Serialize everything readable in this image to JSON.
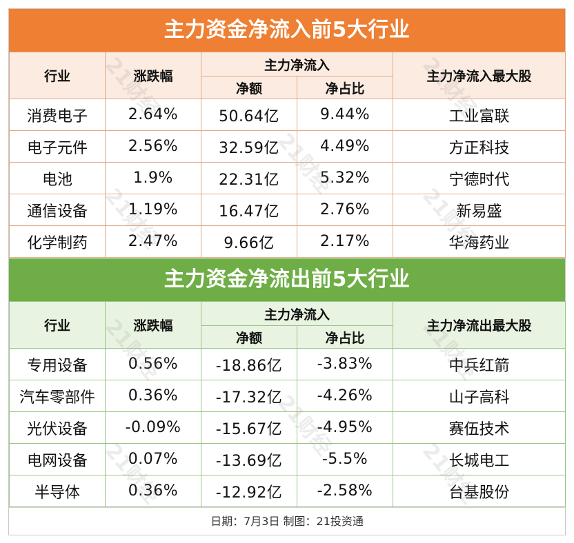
{
  "inflow": {
    "title": "主力资金净流入前5大行业",
    "headers": {
      "industry": "行业",
      "change": "涨跌幅",
      "net_inflow_group": "主力净流入",
      "net_amount": "净额",
      "net_ratio": "净占比",
      "top_stock": "主力净流入最大股"
    },
    "rows": [
      {
        "industry": "消费电子",
        "change": "2.64%",
        "net_amount": "50.64亿",
        "net_ratio": "9.44%",
        "top_stock": "工业富联"
      },
      {
        "industry": "电子元件",
        "change": "2.56%",
        "net_amount": "32.59亿",
        "net_ratio": "4.49%",
        "top_stock": "方正科技"
      },
      {
        "industry": "电池",
        "change": "1.9%",
        "net_amount": "22.31亿",
        "net_ratio": "5.32%",
        "top_stock": "宁德时代"
      },
      {
        "industry": "通信设备",
        "change": "1.19%",
        "net_amount": "16.47亿",
        "net_ratio": "2.76%",
        "top_stock": "新易盛"
      },
      {
        "industry": "化学制药",
        "change": "2.47%",
        "net_amount": "9.66亿",
        "net_ratio": "2.17%",
        "top_stock": "华海药业"
      }
    ]
  },
  "outflow": {
    "title": "主力资金净流出前5大行业",
    "headers": {
      "industry": "行业",
      "change": "涨跌幅",
      "net_inflow_group": "主力净流入",
      "net_amount": "净额",
      "net_ratio": "净占比",
      "top_stock": "主力净流出最大股"
    },
    "rows": [
      {
        "industry": "专用设备",
        "change": "0.56%",
        "net_amount": "-18.86亿",
        "net_ratio": "-3.83%",
        "top_stock": "中兵红箭"
      },
      {
        "industry": "汽车零部件",
        "change": "0.36%",
        "net_amount": "-17.32亿",
        "net_ratio": "-4.26%",
        "top_stock": "山子高科"
      },
      {
        "industry": "光伏设备",
        "change": "-0.09%",
        "net_amount": "-15.67亿",
        "net_ratio": "-4.95%",
        "top_stock": "赛伍技术"
      },
      {
        "industry": "电网设备",
        "change": "0.07%",
        "net_amount": "-13.69亿",
        "net_ratio": "-5.5%",
        "top_stock": "长城电工"
      },
      {
        "industry": "半导体",
        "change": "0.36%",
        "net_amount": "-12.92亿",
        "net_ratio": "-2.58%",
        "top_stock": "台基股份"
      }
    ]
  },
  "footer": "日期：7月3日 制图：21投资通",
  "watermark": "21财经",
  "colors": {
    "inflow_banner": "#ee7f33",
    "inflow_header_bg": "#fcebe1",
    "outflow_banner": "#6fae47",
    "outflow_header_bg": "#e8f4e1"
  }
}
